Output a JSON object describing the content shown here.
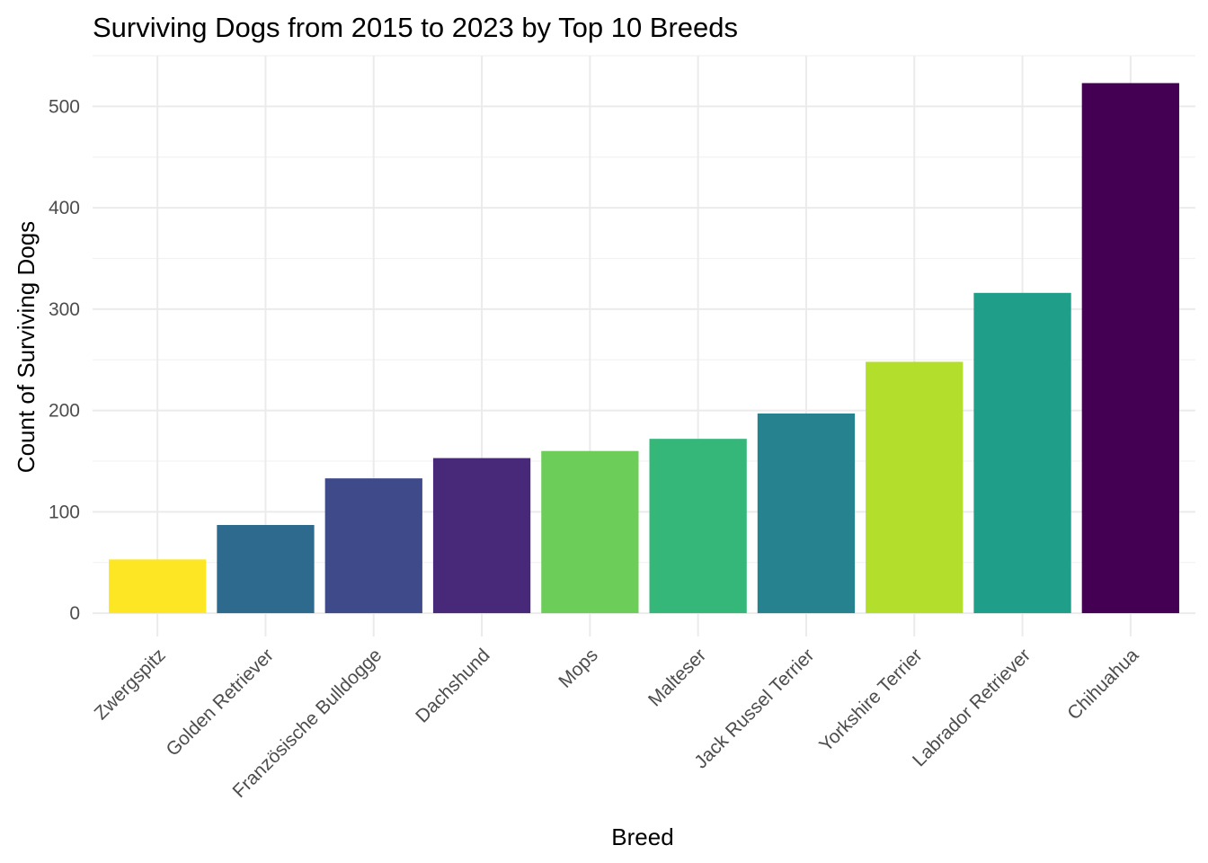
{
  "chart_data": {
    "type": "bar",
    "title": "Surviving Dogs from 2015 to 2023 by Top 10 Breeds",
    "xlabel": "Breed",
    "ylabel": "Count of Surviving Dogs",
    "categories": [
      "Zwergspitz",
      "Golden Retriever",
      "Französische Bulldogge",
      "Dachshund",
      "Mops",
      "Malteser",
      "Jack Russel Terrier",
      "Yorkshire Terrier",
      "Labrador Retriever",
      "Chihuahua"
    ],
    "values": [
      53,
      87,
      133,
      153,
      160,
      172,
      197,
      248,
      316,
      523
    ],
    "colors": [
      "#FDE725",
      "#2E6A8E",
      "#3E4A89",
      "#482878",
      "#6DCD59",
      "#35B779",
      "#26828E",
      "#B4DE2C",
      "#1F9E89",
      "#440154"
    ],
    "yticks": [
      0,
      100,
      200,
      300,
      400,
      500
    ],
    "ylim": [
      -23,
      550
    ],
    "grid": true,
    "legend": "none"
  }
}
